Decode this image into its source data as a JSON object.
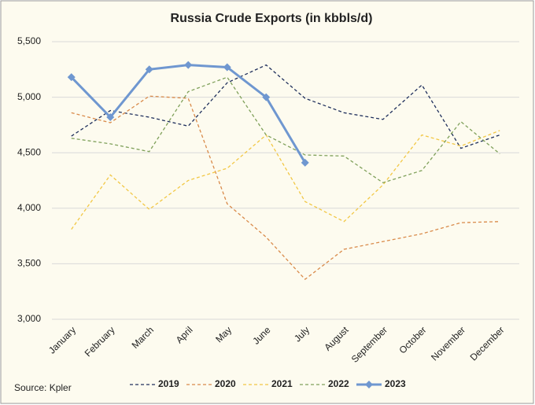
{
  "chart_data": {
    "type": "line",
    "title": "Russia Crude Exports (in kbbls/d)",
    "source": "Source: Kpler",
    "categories": [
      "January",
      "February",
      "March",
      "April",
      "May",
      "June",
      "July",
      "August",
      "September",
      "October",
      "November",
      "December"
    ],
    "series": [
      {
        "name": "2019",
        "color": "#1f2f5c",
        "dash": true,
        "markers": false,
        "values": [
          4650,
          4880,
          4820,
          4740,
          5130,
          5290,
          4990,
          4860,
          4800,
          5110,
          4540,
          4660
        ]
      },
      {
        "name": "2020",
        "color": "#d98a4a",
        "dash": true,
        "markers": false,
        "values": [
          4860,
          4770,
          5010,
          4990,
          4040,
          3740,
          3360,
          3630,
          3700,
          3770,
          3870,
          3880
        ]
      },
      {
        "name": "2021",
        "color": "#f2c744",
        "dash": true,
        "markers": false,
        "values": [
          3810,
          4300,
          3990,
          4250,
          4360,
          4660,
          4060,
          3880,
          4210,
          4660,
          4560,
          4700
        ]
      },
      {
        "name": "2022",
        "color": "#7fa05a",
        "dash": true,
        "markers": false,
        "values": [
          4630,
          4580,
          4510,
          5050,
          5180,
          4660,
          4480,
          4470,
          4230,
          4340,
          4780,
          4490
        ]
      },
      {
        "name": "2023",
        "color": "#6f97d0",
        "dash": false,
        "markers": true,
        "values": [
          5180,
          4820,
          5250,
          5290,
          5270,
          5000,
          4410,
          null,
          null,
          null,
          null,
          null
        ]
      }
    ],
    "ylim": [
      3000,
      5500
    ],
    "yticks": [
      {
        "value": 3000,
        "label": "3,000"
      },
      {
        "value": 3500,
        "label": "3,500"
      },
      {
        "value": 4000,
        "label": "4,000"
      },
      {
        "value": 4500,
        "label": "4,500"
      },
      {
        "value": 5000,
        "label": "5,000"
      },
      {
        "value": 5500,
        "label": "5,500"
      }
    ],
    "grid": true,
    "legend": "bottom"
  }
}
